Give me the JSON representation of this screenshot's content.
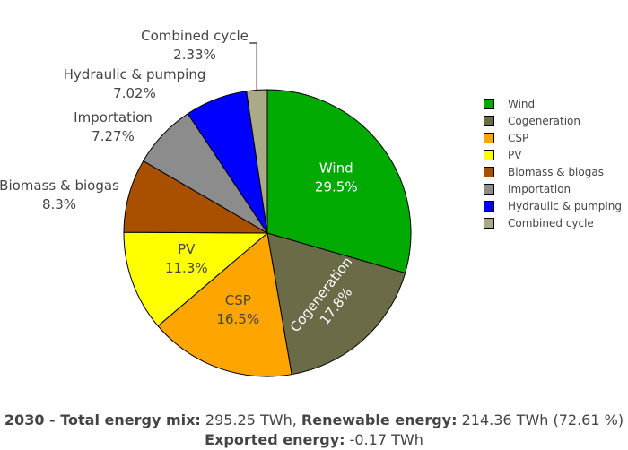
{
  "chart_data": {
    "type": "pie",
    "slices": [
      {
        "label": "Wind",
        "value": 29.5,
        "value_text": "29.5%",
        "color": "#00aa00",
        "text_color": "#ffffff",
        "label_position": "inside"
      },
      {
        "label": "Cogeneration",
        "value": 17.8,
        "value_text": "17.8%",
        "color": "#6b6b47",
        "text_color": "#ffffff",
        "label_position": "inside-rotated"
      },
      {
        "label": "CSP",
        "value": 16.5,
        "value_text": "16.5%",
        "color": "#ffa500",
        "text_color": "#444444",
        "label_position": "inside"
      },
      {
        "label": "PV",
        "value": 11.3,
        "value_text": "11.3%",
        "color": "#ffff00",
        "text_color": "#444444",
        "label_position": "inside"
      },
      {
        "label": "Biomass & biogas",
        "value": 8.3,
        "value_text": "8.3%",
        "color": "#a85000",
        "text_color": "#444444",
        "label_position": "outside"
      },
      {
        "label": "Importation",
        "value": 7.27,
        "value_text": "7.27%",
        "color": "#8c8c8c",
        "text_color": "#444444",
        "label_position": "outside"
      },
      {
        "label": "Hydraulic & pumping",
        "value": 7.02,
        "value_text": "7.02%",
        "color": "#0000ff",
        "text_color": "#444444",
        "label_position": "outside"
      },
      {
        "label": "Combined cycle",
        "value": 2.33,
        "value_text": "2.33%",
        "color": "#aaaa88",
        "text_color": "#444444",
        "label_position": "outside-leader"
      }
    ],
    "legend_placement": "right",
    "direction": "clockwise",
    "start": "top"
  },
  "caption": {
    "line1_bold_a": "2030 - Total energy mix:",
    "line1_a": " 295.25 TWh, ",
    "line1_bold_b": "Renewable energy:",
    "line1_b": " 214.36 TWh (72.61 %)",
    "line2_bold": "Exported energy:",
    "line2": " -0.17 TWh"
  }
}
